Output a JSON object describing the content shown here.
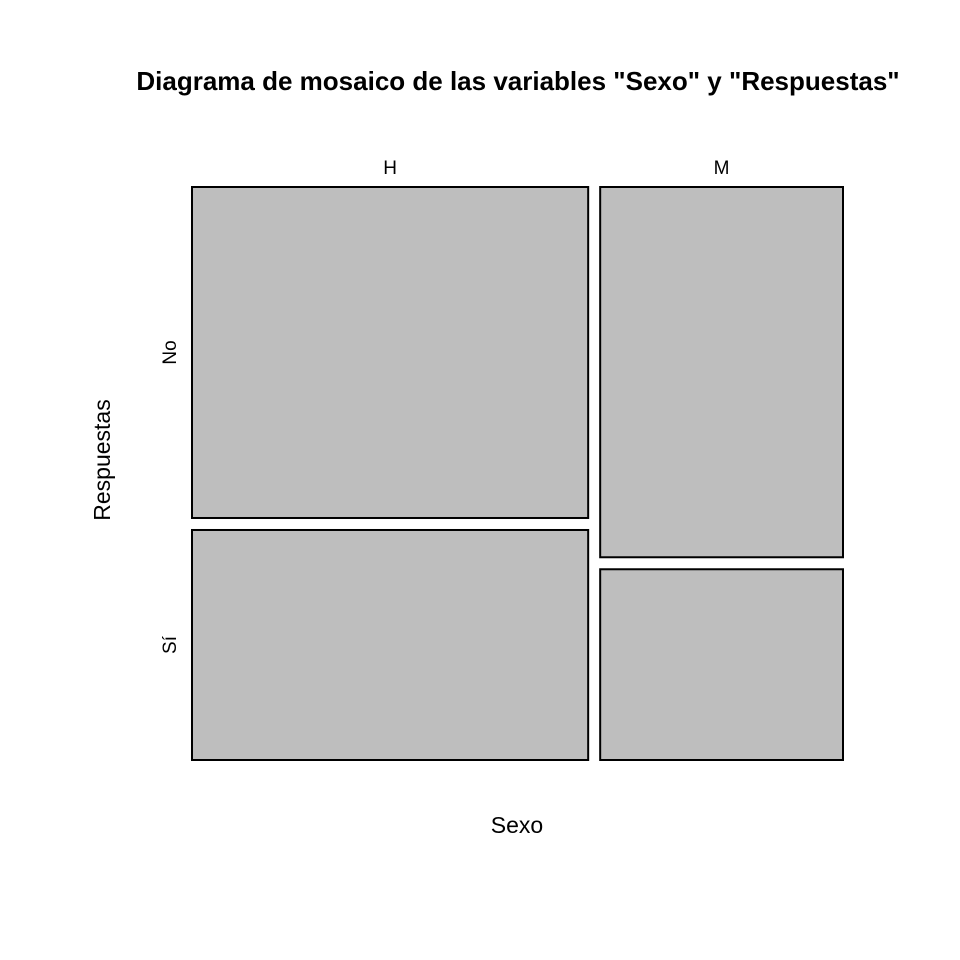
{
  "chart_data": {
    "type": "mosaic",
    "title": "Diagrama de mosaico de las variables \"Sexo\" y \"Respuestas\"",
    "xlabel": "Sexo",
    "ylabel": "Respuestas",
    "x_variable": "Sexo",
    "y_variable": "Respuestas",
    "x_levels": [
      "H",
      "M"
    ],
    "y_levels": [
      "No",
      "Sí"
    ],
    "x_proportions": [
      0.62,
      0.38
    ],
    "conditional_proportions": {
      "H": {
        "No": 0.59,
        "Sí": 0.41
      },
      "M": {
        "No": 0.66,
        "Sí": 0.34
      }
    },
    "fill_color": "#bebebe",
    "border_color": "#000000"
  }
}
